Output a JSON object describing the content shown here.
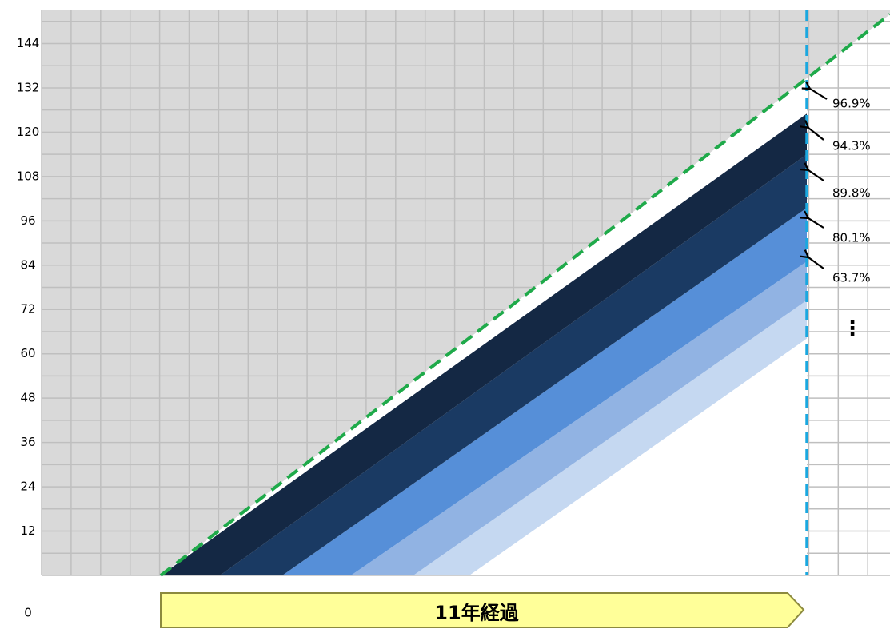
{
  "chart_data": {
    "type": "area",
    "y_ticks": [
      0,
      12,
      24,
      36,
      48,
      60,
      72,
      84,
      96,
      108,
      120,
      132,
      144
    ],
    "ylim": [
      0,
      144
    ],
    "grid": true,
    "reference_line_color": "#1faa4a",
    "current_time_line_color": "#1aa8e0",
    "series": [
      {
        "label": "96.9%",
        "color": "#142844",
        "start": 0,
        "end": 125.0
      },
      {
        "label": "94.3%",
        "color": "#1a3a63",
        "start": 19,
        "end": 114.0
      },
      {
        "label": "89.8%",
        "color": "#568fd8",
        "start": 39,
        "end": 99.5
      },
      {
        "label": "80.1%",
        "color": "#91b3e3",
        "start": 61,
        "end": 85.0
      },
      {
        "label": "63.7%",
        "color": "#c5d8f1",
        "start": 81,
        "end": 74.5
      }
    ],
    "band_height": 18,
    "annotations": {
      "ellipsis": "⋮",
      "elapsed_label": "11年経過"
    }
  }
}
